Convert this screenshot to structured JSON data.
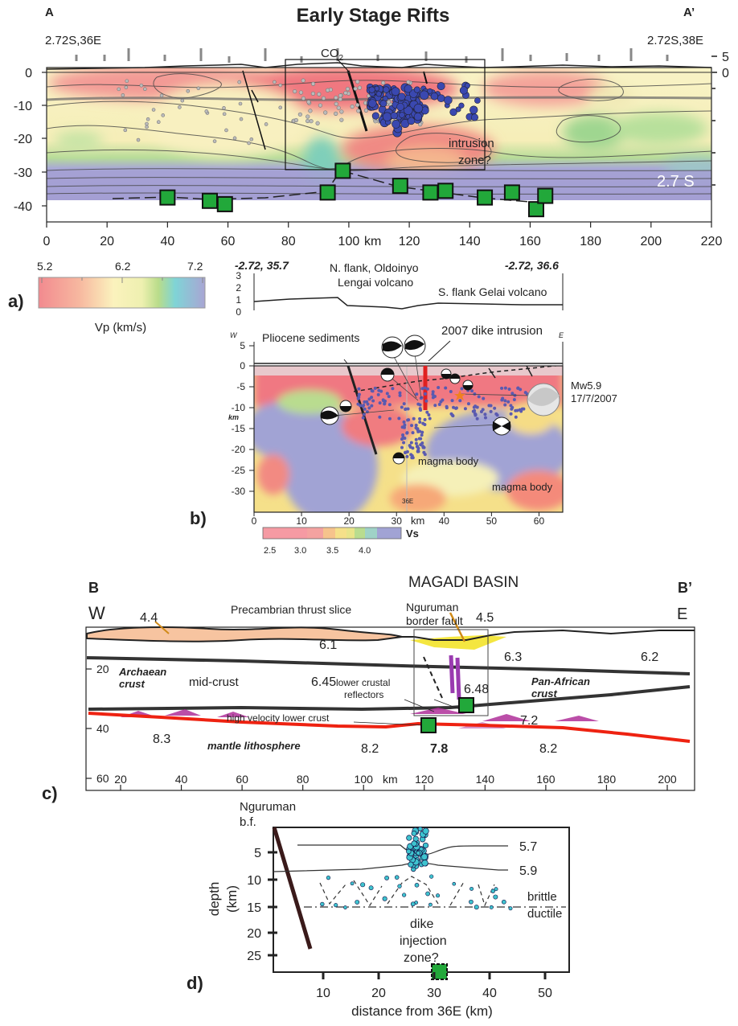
{
  "title": "Early Stage Rifts",
  "panel_a": {
    "label": "a)",
    "left_letter": "A",
    "right_letter": "A’",
    "left_coord": "2.72S,36E",
    "right_coord": "2.72S,38E",
    "co2_label": "CO",
    "co2_sub": "2",
    "intrusion_line1": "intrusion",
    "intrusion_line2": "zone?",
    "section_label": "2.7 S",
    "right_tick_top": "5",
    "right_tick_zero": "0",
    "xticks": [
      "0",
      "20",
      "40",
      "60",
      "80",
      "100",
      "120",
      "140",
      "160",
      "180",
      "200",
      "220"
    ],
    "x_unit": "km",
    "yticks": [
      "0",
      "-10",
      "-20",
      "-30",
      "-40"
    ],
    "colorbar": {
      "min": "5.2",
      "mid": "6.2",
      "max": "7.2",
      "label": "Vp (km/s)"
    },
    "moho_depths_km": [
      [
        40,
        -37.5
      ],
      [
        54,
        -38.5
      ],
      [
        59,
        -39.5
      ],
      [
        93,
        -36
      ],
      [
        98,
        -29.5
      ],
      [
        117,
        -34
      ],
      [
        127,
        -36
      ],
      [
        132,
        -35.5
      ],
      [
        145,
        -37.5
      ],
      [
        154,
        -36
      ],
      [
        162,
        -41
      ],
      [
        165,
        -37
      ]
    ]
  },
  "panel_b": {
    "label": "b)",
    "left_coord": "-2.72, 35.7",
    "right_coord": "-2.72, 36.6",
    "topo_label1": "N. flank, Oldoinyo",
    "topo_label2": "Lengai volcano",
    "topo_label3": "S. flank Gelai volcano",
    "topo_ticks": [
      "3",
      "2",
      "1",
      "0"
    ],
    "w_label": "W",
    "e_label": "E",
    "pliocene": "Pliocene sediments",
    "dike": "2007 dike intrusion",
    "mw": "Mw5.9",
    "date": "17/7/2007",
    "magma1": "magma body",
    "magma2": "magma body",
    "km_unit": "km",
    "lon_tick": "36E",
    "xticks": [
      "0",
      "10",
      "20",
      "30",
      "40",
      "50",
      "60"
    ],
    "yticks": [
      "5",
      "0",
      "-5",
      "-10",
      "-15",
      "-20",
      "-25",
      "-30"
    ],
    "colorbar": {
      "ticks": [
        "2.5",
        "3.0",
        "3.5",
        "4.0"
      ],
      "label": "Vs"
    }
  },
  "panel_c": {
    "label": "c)",
    "left_letter": "B",
    "right_letter": "B’",
    "w": "W",
    "e": "E",
    "basin": "MAGADI BASIN",
    "thrust": "Precambrian thrust slice",
    "fault1": "Nguruman",
    "fault2": "border fault",
    "archaean1": "Archaean",
    "archaean2": "crust",
    "midcrust": "mid-crust",
    "panafrican1": "Pan-African",
    "panafrican2": "crust",
    "lcr1": "lower crustal",
    "lcr2": "reflectors",
    "hvlc": "high velocity lower crust",
    "mantle": "mantle lithosphere",
    "velocities": {
      "v44": "4.4",
      "v45": "4.5",
      "v61": "6.1",
      "v63": "6.3",
      "v62": "6.2",
      "v645": "6.45",
      "v648": "6.48",
      "v72": "7.2",
      "v83": "8.3",
      "v82a": "8.2",
      "v78": "7.8",
      "v82b": "8.2"
    },
    "depth_ticks": [
      "20",
      "40",
      "60"
    ],
    "xticks": [
      "20",
      "40",
      "60",
      "80",
      "100",
      "120",
      "140",
      "160",
      "180",
      "200"
    ],
    "km_unit": "km"
  },
  "panel_d": {
    "label": "d)",
    "fault1": "Nguruman",
    "fault2": "b.f.",
    "v57": "5.7",
    "v59": "5.9",
    "brittle": "brittle",
    "ductile": "ductile",
    "dike1": "dike",
    "dike2": "injection",
    "dike3": "zone?",
    "ylabel1": "depth",
    "ylabel2": "(km)",
    "yticks": [
      "5",
      "10",
      "15",
      "20",
      "25"
    ],
    "xticks": [
      "10",
      "20",
      "30",
      "40",
      "50"
    ],
    "xlabel": "distance from 36E (km)"
  },
  "colors": {
    "moho_marker": "#22a83a",
    "seismic_blue": "#3a48b0",
    "eq_cyan": "#3ec3cf",
    "mantle_red": "#ee2211",
    "pink_lens": "#b0309a",
    "dike_red": "#e02020"
  }
}
